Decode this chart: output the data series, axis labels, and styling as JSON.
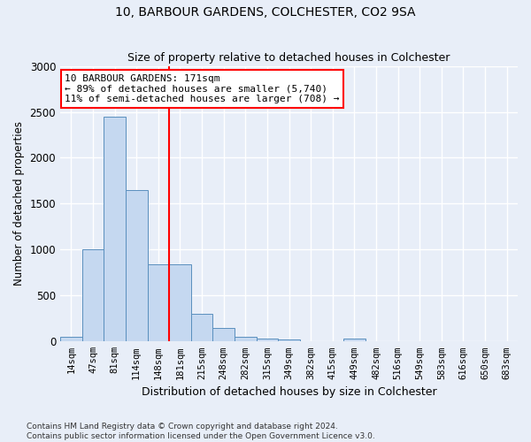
{
  "title": "10, BARBOUR GARDENS, COLCHESTER, CO2 9SA",
  "subtitle": "Size of property relative to detached houses in Colchester",
  "xlabel": "Distribution of detached houses by size in Colchester",
  "ylabel": "Number of detached properties",
  "categories": [
    "14sqm",
    "47sqm",
    "81sqm",
    "114sqm",
    "148sqm",
    "181sqm",
    "215sqm",
    "248sqm",
    "282sqm",
    "315sqm",
    "349sqm",
    "382sqm",
    "415sqm",
    "449sqm",
    "482sqm",
    "516sqm",
    "549sqm",
    "583sqm",
    "616sqm",
    "650sqm",
    "683sqm"
  ],
  "values": [
    55,
    1000,
    2450,
    1650,
    840,
    840,
    300,
    150,
    55,
    35,
    20,
    0,
    0,
    30,
    0,
    0,
    0,
    0,
    0,
    0,
    0
  ],
  "bar_color": "#c5d8f0",
  "bar_edge_color": "#5a8fbe",
  "vline_x": 4.5,
  "vline_color": "red",
  "annotation_text": "10 BARBOUR GARDENS: 171sqm\n← 89% of detached houses are smaller (5,740)\n11% of semi-detached houses are larger (708) →",
  "annotation_box_color": "white",
  "annotation_box_edge_color": "red",
  "ylim": [
    0,
    3000
  ],
  "yticks": [
    0,
    500,
    1000,
    1500,
    2000,
    2500,
    3000
  ],
  "footer_line1": "Contains HM Land Registry data © Crown copyright and database right 2024.",
  "footer_line2": "Contains public sector information licensed under the Open Government Licence v3.0.",
  "background_color": "#e8eef8",
  "grid_color": "white"
}
